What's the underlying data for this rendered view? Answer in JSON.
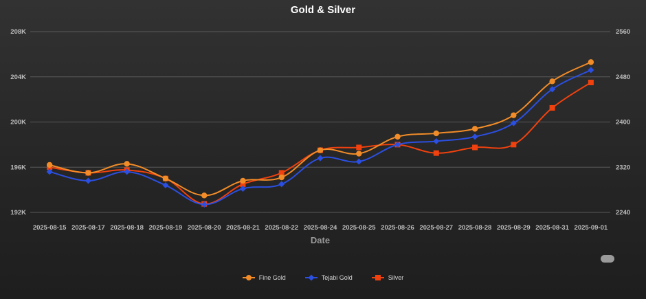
{
  "chart_data": {
    "type": "line",
    "title": "Gold & Silver",
    "xlabel": "Date",
    "categories": [
      "2025-08-15",
      "2025-08-17",
      "2025-08-18",
      "2025-08-19",
      "2025-08-20",
      "2025-08-21",
      "2025-08-22",
      "2025-08-24",
      "2025-08-25",
      "2025-08-26",
      "2025-08-27",
      "2025-08-28",
      "2025-08-29",
      "2025-08-31",
      "2025-09-01"
    ],
    "y_left": {
      "ticks": [
        "192K",
        "196K",
        "200K",
        "204K",
        "208K"
      ],
      "ylim": [
        192000,
        208000
      ]
    },
    "y_right": {
      "ticks": [
        "2240",
        "2320",
        "2400",
        "2480",
        "2560"
      ],
      "ylim": [
        2240,
        2560
      ]
    },
    "series": [
      {
        "name": "Fine Gold",
        "axis": "left",
        "marker": "circle",
        "color": "#f28c28",
        "values": [
          196200,
          195500,
          196300,
          195000,
          193500,
          194800,
          195100,
          197500,
          197200,
          198700,
          199000,
          199400,
          200600,
          203600,
          205300
        ]
      },
      {
        "name": "Tejabi Gold",
        "axis": "left",
        "marker": "diamond",
        "color": "#2b4fe0",
        "values": [
          195600,
          194800,
          195600,
          194400,
          192700,
          194100,
          194500,
          196800,
          196500,
          198000,
          198300,
          198700,
          199900,
          202900,
          204600
        ]
      },
      {
        "name": "Silver",
        "axis": "right",
        "marker": "square",
        "color": "#f0410e",
        "values": [
          2320,
          2310,
          2315,
          2300,
          2255,
          2290,
          2310,
          2350,
          2355,
          2360,
          2345,
          2355,
          2360,
          2425,
          2470
        ]
      }
    ],
    "grid": true,
    "legend": "bottom-center"
  }
}
